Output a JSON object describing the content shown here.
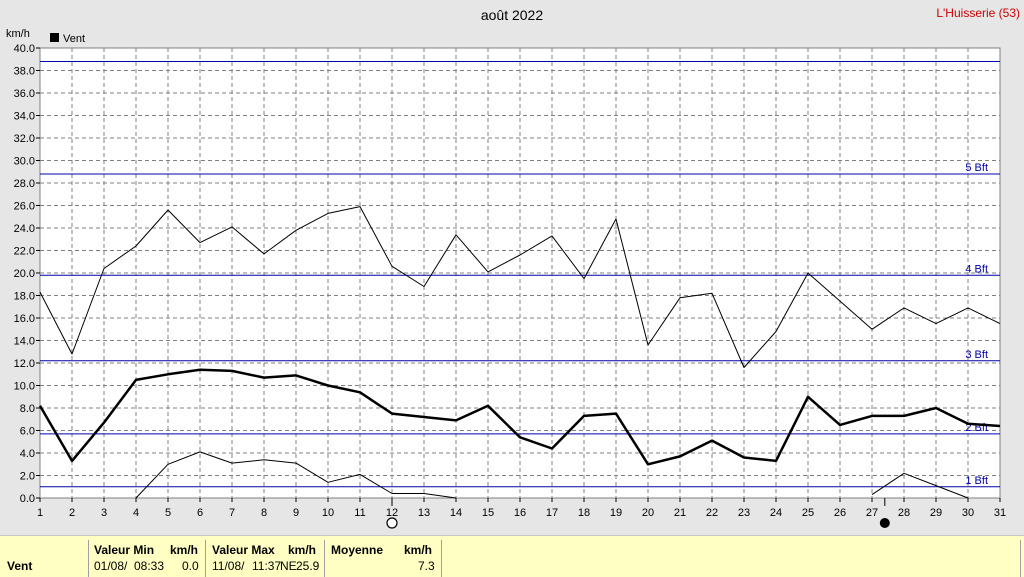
{
  "header": {
    "title": "août 2022",
    "station": "L'Huisserie (53)",
    "y_unit": "km/h"
  },
  "chart_data": {
    "type": "line",
    "x": [
      1,
      2,
      3,
      4,
      5,
      6,
      7,
      8,
      9,
      10,
      11,
      12,
      13,
      14,
      15,
      16,
      17,
      18,
      19,
      20,
      21,
      22,
      23,
      24,
      25,
      26,
      27,
      28,
      29,
      30,
      31
    ],
    "xlim": [
      1,
      31
    ],
    "ylim": [
      0,
      40
    ],
    "y_ticks": [
      "0.0",
      "2.0",
      "4.0",
      "6.0",
      "8.0",
      "10.0",
      "12.0",
      "14.0",
      "16.0",
      "18.0",
      "20.0",
      "22.0",
      "24.0",
      "26.0",
      "28.0",
      "30.0",
      "32.0",
      "34.0",
      "36.0",
      "38.0",
      "40.0"
    ],
    "x_ticks": [
      "1",
      "2",
      "3",
      "4",
      "5",
      "6",
      "7",
      "8",
      "9",
      "10",
      "11",
      "12",
      "13",
      "14",
      "15",
      "16",
      "17",
      "18",
      "19",
      "20",
      "21",
      "22",
      "23",
      "24",
      "25",
      "26",
      "27",
      "28",
      "29",
      "30",
      "31"
    ],
    "grid": true,
    "legend": {
      "position": "top-left",
      "entries": [
        "Vent"
      ]
    },
    "series": [
      {
        "name": "Vent",
        "role": "mean",
        "values": [
          8.2,
          3.3,
          6.7,
          10.5,
          11.0,
          11.4,
          11.3,
          10.7,
          10.9,
          10.0,
          9.4,
          7.5,
          7.2,
          6.9,
          8.2,
          5.4,
          4.4,
          7.3,
          7.5,
          3.0,
          3.7,
          5.1,
          3.6,
          3.3,
          9.0,
          6.5,
          7.3,
          7.3,
          8.0,
          6.6,
          6.4
        ]
      },
      {
        "role": "max",
        "values": [
          18.3,
          12.8,
          20.4,
          22.4,
          25.6,
          22.7,
          24.1,
          21.7,
          23.8,
          25.3,
          25.9,
          20.6,
          18.8,
          23.4,
          20.1,
          21.6,
          23.3,
          19.5,
          24.8,
          13.6,
          17.8,
          18.2,
          11.6,
          14.8,
          20.0,
          17.5,
          15.0,
          16.9,
          15.5,
          16.9,
          15.5
        ]
      },
      {
        "role": "min",
        "values": [
          null,
          null,
          null,
          0.0,
          3.0,
          4.1,
          3.1,
          3.4,
          3.1,
          1.4,
          2.1,
          0.4,
          0.4,
          0.0,
          null,
          null,
          null,
          null,
          null,
          null,
          null,
          null,
          null,
          null,
          null,
          null,
          0.3,
          2.2,
          1.1,
          0.0,
          null
        ]
      }
    ],
    "reference_lines": [
      {
        "value": 1.0,
        "label": "1 Bft"
      },
      {
        "value": 5.7,
        "label": "2 Bft"
      },
      {
        "value": 12.2,
        "label": "3 Bft"
      },
      {
        "value": 19.8,
        "label": "4 Bft"
      },
      {
        "value": 28.8,
        "label": "5 Bft"
      },
      {
        "value": 38.8,
        "label": ""
      }
    ],
    "moon_phases": [
      {
        "day": 12,
        "phase": "full"
      },
      {
        "day": 27.4,
        "phase": "new"
      }
    ],
    "colors": {
      "series": "#000000",
      "reference": "#0000aa",
      "grid": "#808080",
      "plot_bg": "#ffffff",
      "bg": "#e6e6e6"
    }
  },
  "footer": {
    "row_label": "Vent",
    "min_title": "Valeur Min",
    "min_unit": "km/h",
    "min_date": "01/08/",
    "min_time": "08:33",
    "min_value": "0.0",
    "max_title": "Valeur Max",
    "max_unit": "km/h",
    "max_date": "11/08/",
    "max_time": "11:37",
    "max_dir": "NE",
    "max_value": "25.9",
    "avg_title": "Moyenne",
    "avg_unit": "km/h",
    "avg_value": "7.3"
  }
}
